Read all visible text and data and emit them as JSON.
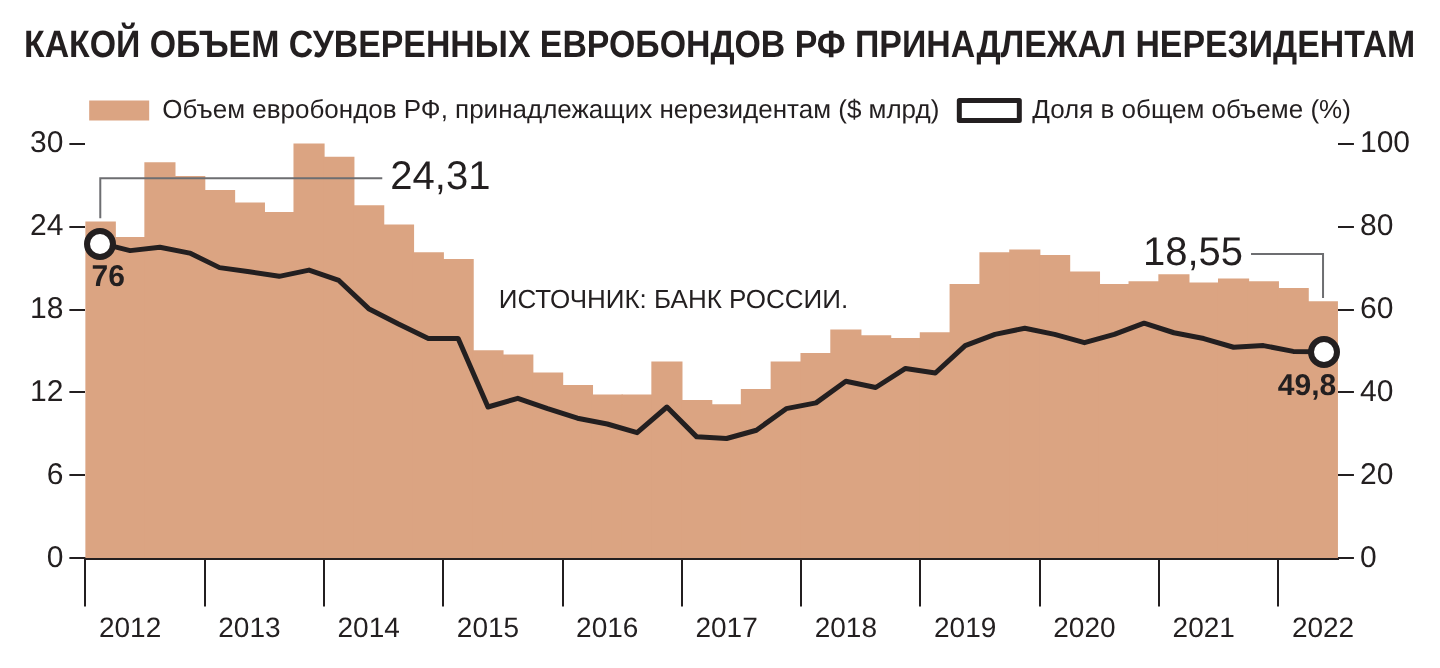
{
  "chart_data": {
    "type": "bar",
    "title": "КАКОЙ ОБЪЕМ СУВЕРЕННЫХ ЕВРОБОНДОВ РФ ПРИНАДЛЕЖАЛ НЕРЕЗИДЕНТАМ",
    "categories": [
      null,
      "2012",
      null,
      null,
      null,
      "2013",
      null,
      null,
      null,
      "2014",
      null,
      null,
      null,
      "2015",
      null,
      null,
      null,
      "2016",
      null,
      null,
      null,
      "2017",
      null,
      null,
      null,
      "2018",
      null,
      null,
      null,
      "2019",
      null,
      null,
      null,
      "2020",
      null,
      null,
      null,
      "2021",
      null,
      null,
      null,
      "2022"
    ],
    "series": [
      {
        "name": "Объем евробондов РФ, принадлежащих нерезидентам ($ млрд)",
        "color": "#dba482",
        "values": [
          24.31,
          23.2,
          28.6,
          27.6,
          26.6,
          25.7,
          25.0,
          30,
          29.0,
          25.5,
          24.1,
          22.1,
          21.6,
          15.0,
          14.7,
          13.4,
          12.5,
          11.8,
          11.8,
          14.2,
          11.4,
          11.1,
          12.2,
          14.2,
          14.8,
          16.5,
          16.1,
          15.9,
          16.3,
          19.8,
          22.1,
          22.3,
          21.9,
          20.7,
          19.8,
          20.0,
          20.5,
          19.9,
          20.2,
          20.0,
          19.5,
          18.55
        ],
        "value_labels": [
          "24,31",
          null,
          null,
          null,
          null,
          null,
          null,
          null,
          null,
          null,
          null,
          null,
          null,
          null,
          null,
          null,
          null,
          null,
          null,
          null,
          null,
          null,
          null,
          null,
          null,
          null,
          null,
          null,
          null,
          null,
          null,
          null,
          null,
          null,
          null,
          null,
          null,
          null,
          null,
          null,
          null,
          "18,55"
        ]
      },
      {
        "name": "Доля в общем объеме (%)",
        "type": "line",
        "axis": "y2",
        "color": "#231f20",
        "values": [
          76,
          74.2,
          75.0,
          73.6,
          70.1,
          69.1,
          68.0,
          69.5,
          67.0,
          60.2,
          56.5,
          53.0,
          53.0,
          36.5,
          38.6,
          36.1,
          33.8,
          32.4,
          30.3,
          36.5,
          29.3,
          28.9,
          30.9,
          36.1,
          37.5,
          42.7,
          41.2,
          45.8,
          44.7,
          51.3,
          54.0,
          55.5,
          54.0,
          52.0,
          54.0,
          56.7,
          54.4,
          53.0,
          50.9,
          51.3,
          49.9,
          49.8
        ],
        "value_labels": [
          "76",
          null,
          null,
          null,
          null,
          null,
          null,
          null,
          null,
          null,
          null,
          null,
          null,
          null,
          null,
          null,
          null,
          null,
          null,
          null,
          null,
          null,
          null,
          null,
          null,
          null,
          null,
          null,
          null,
          null,
          null,
          null,
          null,
          null,
          null,
          null,
          null,
          null,
          null,
          null,
          null,
          "49,8"
        ]
      }
    ],
    "ylim": [
      0,
      30
    ],
    "yticks": [
      0,
      6,
      12,
      18,
      24,
      30
    ],
    "y2lim": [
      0,
      100
    ],
    "y2ticks": [
      0,
      20,
      40,
      60,
      80,
      100
    ],
    "legend": "top",
    "annotations": [
      "ИСТОЧНИК: БАНК РОССИИ."
    ]
  }
}
